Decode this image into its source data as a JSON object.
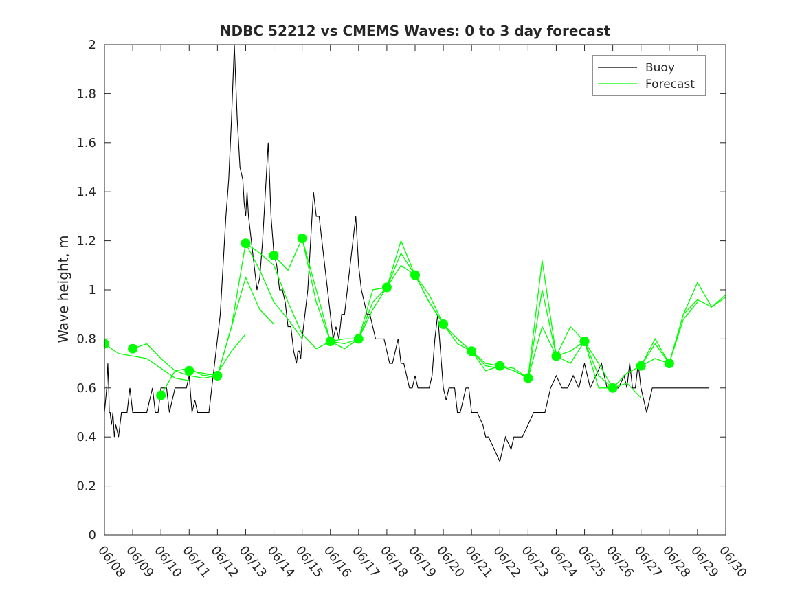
{
  "chart_data": {
    "type": "line",
    "title": "NDBC 52212 vs CMEMS Waves: 0 to 3 day forecast",
    "xlabel": "",
    "ylabel": "Wave height, m",
    "ylim": [
      0,
      2
    ],
    "yticks": [
      0,
      0.2,
      0.4,
      0.6,
      0.8,
      1,
      1.2,
      1.4,
      1.6,
      1.8,
      2
    ],
    "ytick_labels": [
      "0",
      "0.2",
      "0.4",
      "0.6",
      "0.8",
      "1",
      "1.2",
      "1.4",
      "1.6",
      "1.8",
      "2"
    ],
    "xlim": [
      "06/08",
      "06/30"
    ],
    "xtick_labels": [
      "06/08",
      "06/09",
      "06/10",
      "06/11",
      "06/12",
      "06/13",
      "06/14",
      "06/15",
      "06/16",
      "06/17",
      "06/18",
      "06/19",
      "06/20",
      "06/21",
      "06/22",
      "06/23",
      "06/24",
      "06/25",
      "06/26",
      "06/27",
      "06/28",
      "06/29",
      "06/30"
    ],
    "grid": false,
    "legend": {
      "position": "top-right",
      "entries": [
        "Buoy",
        "Forecast"
      ]
    },
    "colors": {
      "buoy": "#000000",
      "forecast": "#00ff00"
    },
    "series": [
      {
        "name": "Buoy",
        "x_days": [
          0,
          0.08,
          0.12,
          0.15,
          0.17,
          0.2,
          0.25,
          0.3,
          0.35,
          0.4,
          0.5,
          0.6,
          0.8,
          0.9,
          1.0,
          1.2,
          1.5,
          1.7,
          1.8,
          1.9,
          2.0,
          2.1,
          2.2,
          2.3,
          2.5,
          2.7,
          2.9,
          3.0,
          3.1,
          3.2,
          3.3,
          3.5,
          3.7,
          3.8,
          3.9,
          4.0,
          4.1,
          4.2,
          4.3,
          4.4,
          4.5,
          4.6,
          4.7,
          4.8,
          4.9,
          4.95,
          5.0,
          5.05,
          5.1,
          5.2,
          5.3,
          5.4,
          5.5,
          5.6,
          5.7,
          5.8,
          5.9,
          6.0,
          6.1,
          6.2,
          6.3,
          6.4,
          6.5,
          6.6,
          6.7,
          6.8,
          6.85,
          6.9,
          6.95,
          7.0,
          7.1,
          7.2,
          7.3,
          7.4,
          7.5,
          7.6,
          7.7,
          7.8,
          7.9,
          8.0,
          8.1,
          8.2,
          8.3,
          8.4,
          8.5,
          8.6,
          8.7,
          8.8,
          8.9,
          9.0,
          9.1,
          9.2,
          9.3,
          9.4,
          9.5,
          9.6,
          9.7,
          9.8,
          9.9,
          10.0,
          10.1,
          10.2,
          10.3,
          10.4,
          10.5,
          10.6,
          10.7,
          10.8,
          10.9,
          11.0,
          11.1,
          11.2,
          11.3,
          11.4,
          11.5,
          11.6,
          11.7,
          11.8,
          11.9,
          12.0,
          12.1,
          12.2,
          12.3,
          12.4,
          12.5,
          12.6,
          12.7,
          12.8,
          12.9,
          13.0,
          13.2,
          13.4,
          13.5,
          13.6,
          13.8,
          14.0,
          14.2,
          14.4,
          14.5,
          14.6,
          14.8,
          15.0,
          15.2,
          15.4,
          15.6,
          15.7,
          15.8,
          16.0,
          16.2,
          16.4,
          16.6,
          16.8,
          17.0,
          17.2,
          17.4,
          17.6,
          17.8,
          18.0,
          18.2,
          18.4,
          18.5,
          18.6,
          18.7,
          18.8,
          18.9,
          19.0,
          19.2,
          19.4,
          19.6,
          19.8,
          20.0,
          20.2,
          20.4,
          20.6,
          20.8,
          21.0,
          21.2,
          21.4
        ],
        "values": [
          0.5,
          0.6,
          0.7,
          0.6,
          0.5,
          0.5,
          0.45,
          0.5,
          0.4,
          0.45,
          0.4,
          0.5,
          0.5,
          0.6,
          0.5,
          0.5,
          0.5,
          0.6,
          0.5,
          0.5,
          0.6,
          0.6,
          0.6,
          0.5,
          0.6,
          0.6,
          0.6,
          0.65,
          0.5,
          0.55,
          0.5,
          0.5,
          0.5,
          0.6,
          0.7,
          0.8,
          0.9,
          1.1,
          1.3,
          1.45,
          1.7,
          2.0,
          1.7,
          1.5,
          1.45,
          1.35,
          1.3,
          1.4,
          1.3,
          1.2,
          1.1,
          1.0,
          1.05,
          1.2,
          1.4,
          1.6,
          1.3,
          1.15,
          1.1,
          1.0,
          1.0,
          0.95,
          0.85,
          0.85,
          0.75,
          0.7,
          0.75,
          0.75,
          0.72,
          0.8,
          0.9,
          1.0,
          1.2,
          1.4,
          1.3,
          1.3,
          1.2,
          1.1,
          1.0,
          0.9,
          0.8,
          0.85,
          0.8,
          0.9,
          0.9,
          1.0,
          1.1,
          1.2,
          1.3,
          1.1,
          1.0,
          0.95,
          0.9,
          0.9,
          0.85,
          0.8,
          0.8,
          0.8,
          0.8,
          0.75,
          0.7,
          0.7,
          0.75,
          0.8,
          0.7,
          0.7,
          0.65,
          0.6,
          0.6,
          0.65,
          0.6,
          0.6,
          0.6,
          0.6,
          0.6,
          0.65,
          0.8,
          0.9,
          0.75,
          0.6,
          0.55,
          0.6,
          0.6,
          0.6,
          0.5,
          0.5,
          0.55,
          0.6,
          0.6,
          0.5,
          0.5,
          0.45,
          0.4,
          0.4,
          0.35,
          0.3,
          0.4,
          0.35,
          0.4,
          0.4,
          0.4,
          0.45,
          0.5,
          0.5,
          0.5,
          0.55,
          0.6,
          0.65,
          0.6,
          0.6,
          0.65,
          0.6,
          0.7,
          0.6,
          0.65,
          0.7,
          0.6,
          0.6,
          0.6,
          0.65,
          0.6,
          0.7,
          0.6,
          0.6,
          0.7,
          0.6,
          0.5,
          0.6,
          0.6,
          0.6,
          0.6,
          0.6,
          0.6,
          0.6,
          0.6,
          0.6,
          0.6,
          0.6
        ]
      },
      {
        "name": "Forecast",
        "runs": [
          {
            "x_days": [
              0.0,
              0.5,
              1.0,
              1.5,
              2.0,
              2.5,
              3.0
            ],
            "values": [
              0.78,
              0.74,
              0.73,
              0.72,
              0.68,
              0.64,
              0.63
            ]
          },
          {
            "x_days": [
              1.0,
              1.5,
              2.0,
              2.5,
              3.0,
              3.5,
              4.0
            ],
            "values": [
              0.76,
              0.78,
              0.72,
              0.67,
              0.65,
              0.64,
              0.65
            ]
          },
          {
            "x_days": [
              2.0,
              2.5,
              3.0,
              3.5,
              4.0,
              4.5,
              5.0
            ],
            "values": [
              0.57,
              0.67,
              0.68,
              0.65,
              0.66,
              0.75,
              0.82
            ]
          },
          {
            "x_days": [
              3.0,
              3.5,
              4.0,
              4.5,
              5.0,
              5.5,
              6.0
            ],
            "values": [
              0.67,
              0.66,
              0.65,
              0.85,
              1.05,
              0.92,
              0.86
            ]
          },
          {
            "x_days": [
              4.0,
              4.5,
              5.0,
              5.5,
              6.0,
              6.5,
              7.0
            ],
            "values": [
              0.65,
              0.85,
              1.19,
              1.08,
              0.95,
              0.88,
              0.8
            ]
          },
          {
            "x_days": [
              5.0,
              5.5,
              6.0,
              6.5,
              7.0,
              7.5,
              8.0
            ],
            "values": [
              1.19,
              1.15,
              1.1,
              0.95,
              0.82,
              0.76,
              0.79
            ]
          },
          {
            "x_days": [
              6.0,
              6.5,
              7.0,
              7.5,
              8.0,
              8.5,
              9.0
            ],
            "values": [
              1.14,
              1.08,
              1.21,
              0.95,
              0.79,
              0.78,
              0.8
            ]
          },
          {
            "x_days": [
              7.0,
              7.5,
              8.0,
              8.5,
              9.0,
              9.5,
              10.0
            ],
            "values": [
              1.21,
              1.0,
              0.79,
              0.76,
              0.8,
              0.95,
              1.01
            ]
          },
          {
            "x_days": [
              8.0,
              8.5,
              9.0,
              9.5,
              10.0,
              10.5,
              11.0
            ],
            "values": [
              0.79,
              0.8,
              0.8,
              1.0,
              1.01,
              1.15,
              1.06
            ]
          },
          {
            "x_days": [
              9.0,
              9.5,
              10.0,
              10.5,
              11.0,
              11.5,
              12.0
            ],
            "values": [
              0.8,
              0.92,
              1.01,
              1.2,
              1.06,
              0.95,
              0.86
            ]
          },
          {
            "x_days": [
              10.0,
              10.5,
              11.0,
              11.5,
              12.0,
              12.5,
              13.0
            ],
            "values": [
              1.01,
              1.1,
              1.06,
              0.95,
              0.86,
              0.8,
              0.75
            ]
          },
          {
            "x_days": [
              11.0,
              11.5,
              12.0,
              12.5,
              13.0,
              13.5,
              14.0
            ],
            "values": [
              1.06,
              0.98,
              0.86,
              0.78,
              0.75,
              0.69,
              0.68
            ]
          },
          {
            "x_days": [
              12.0,
              12.5,
              13.0,
              13.5,
              14.0,
              14.5,
              15.0
            ],
            "values": [
              0.86,
              0.8,
              0.75,
              0.67,
              0.69,
              0.68,
              0.64
            ]
          },
          {
            "x_days": [
              13.0,
              13.5,
              14.0,
              14.5,
              15.0,
              15.5,
              16.0
            ],
            "values": [
              0.75,
              0.7,
              0.69,
              0.67,
              0.64,
              0.85,
              0.73
            ]
          },
          {
            "x_days": [
              14.0,
              14.5,
              15.0,
              15.5,
              16.0,
              16.5,
              17.0
            ],
            "values": [
              0.69,
              0.67,
              0.64,
              1.12,
              0.73,
              0.7,
              0.79
            ]
          },
          {
            "x_days": [
              15.0,
              15.5,
              16.0,
              16.5,
              17.0,
              17.5,
              18.0
            ],
            "values": [
              0.64,
              1.0,
              0.73,
              0.75,
              0.79,
              0.65,
              0.6
            ]
          },
          {
            "x_days": [
              16.0,
              16.5,
              17.0,
              17.5,
              18.0,
              18.5,
              19.0
            ],
            "values": [
              0.73,
              0.85,
              0.79,
              0.6,
              0.6,
              0.62,
              0.56
            ]
          },
          {
            "x_days": [
              17.0,
              17.5,
              18.0,
              18.5,
              19.0,
              19.5,
              20.0
            ],
            "values": [
              0.79,
              0.7,
              0.6,
              0.66,
              0.69,
              0.72,
              0.7
            ]
          },
          {
            "x_days": [
              18.0,
              18.5,
              19.0,
              19.5,
              20.0,
              20.5,
              21.0
            ],
            "values": [
              0.6,
              0.66,
              0.69,
              0.8,
              0.7,
              0.88,
              0.95
            ]
          },
          {
            "x_days": [
              19.0,
              19.5,
              20.0,
              20.5,
              21.0,
              21.5,
              22.0
            ],
            "values": [
              0.69,
              0.78,
              0.7,
              0.9,
              0.96,
              0.93,
              0.97
            ]
          },
          {
            "x_days": [
              20.0,
              20.5,
              21.0,
              21.5,
              22.0
            ],
            "values": [
              0.7,
              0.9,
              1.03,
              0.93,
              0.98
            ]
          }
        ],
        "markers": {
          "x_days": [
            0,
            1,
            2,
            3,
            4,
            5,
            6,
            7,
            8,
            9,
            10,
            11,
            12,
            13,
            14,
            15,
            16,
            17,
            18,
            19,
            20
          ],
          "values": [
            0.78,
            0.76,
            0.57,
            0.67,
            0.65,
            1.19,
            1.14,
            1.21,
            0.79,
            0.8,
            1.01,
            1.06,
            0.86,
            0.75,
            0.69,
            0.64,
            0.73,
            0.79,
            0.6,
            0.69,
            0.7
          ]
        }
      }
    ]
  }
}
